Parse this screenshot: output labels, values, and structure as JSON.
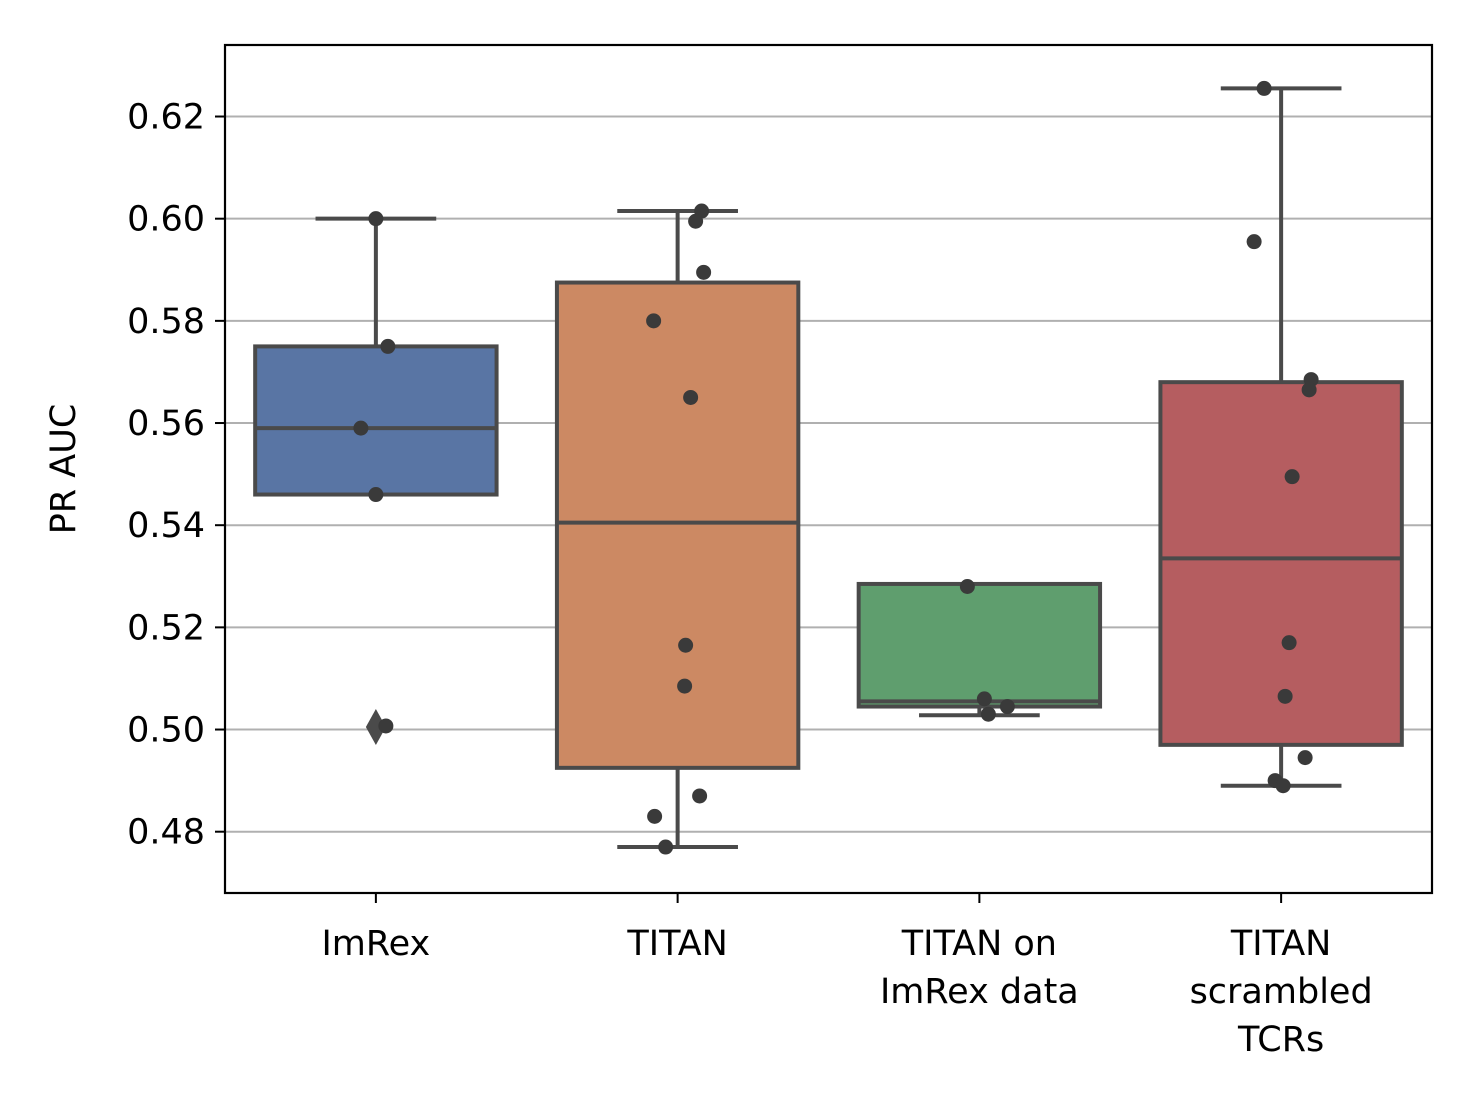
{
  "chart_data": {
    "type": "box",
    "title": "",
    "xlabel": "",
    "ylabel": "PR AUC",
    "ylim": [
      0.468,
      0.634
    ],
    "yticks": [
      0.48,
      0.5,
      0.52,
      0.54,
      0.56,
      0.58,
      0.6,
      0.62
    ],
    "ytick_labels": [
      "0.48",
      "0.50",
      "0.52",
      "0.54",
      "0.56",
      "0.58",
      "0.60",
      "0.62"
    ],
    "grid": "horizontal",
    "legend": "none",
    "categories": [
      {
        "label_lines": [
          "ImRex"
        ],
        "color": "#5975a4",
        "q1": 0.546,
        "median": 0.559,
        "q3": 0.575,
        "whisker_low": 0.546,
        "whisker_high": 0.6,
        "outliers": [
          0.5005
        ],
        "points": [
          0.6,
          0.575,
          0.559,
          0.546,
          0.5007
        ]
      },
      {
        "label_lines": [
          "TITAN"
        ],
        "color": "#cc8963",
        "q1": 0.4925,
        "median": 0.5405,
        "q3": 0.5875,
        "whisker_low": 0.477,
        "whisker_high": 0.6015,
        "outliers": [],
        "points": [
          0.6015,
          0.5995,
          0.5895,
          0.58,
          0.565,
          0.5165,
          0.5085,
          0.487,
          0.483,
          0.477
        ]
      },
      {
        "label_lines": [
          "TITAN on",
          "ImRex data"
        ],
        "color": "#5f9e6e",
        "q1": 0.5045,
        "median": 0.5055,
        "q3": 0.5285,
        "whisker_low": 0.5028,
        "whisker_high": 0.5285,
        "outliers": [],
        "points": [
          0.528,
          0.506,
          0.5045,
          0.503
        ]
      },
      {
        "label_lines": [
          "TITAN",
          "scrambled",
          "TCRs"
        ],
        "color": "#b55d60",
        "q1": 0.497,
        "median": 0.5335,
        "q3": 0.568,
        "whisker_low": 0.489,
        "whisker_high": 0.6255,
        "outliers": [],
        "points": [
          0.6255,
          0.5955,
          0.5685,
          0.5665,
          0.5495,
          0.517,
          0.5065,
          0.4945,
          0.49,
          0.489
        ]
      }
    ]
  }
}
